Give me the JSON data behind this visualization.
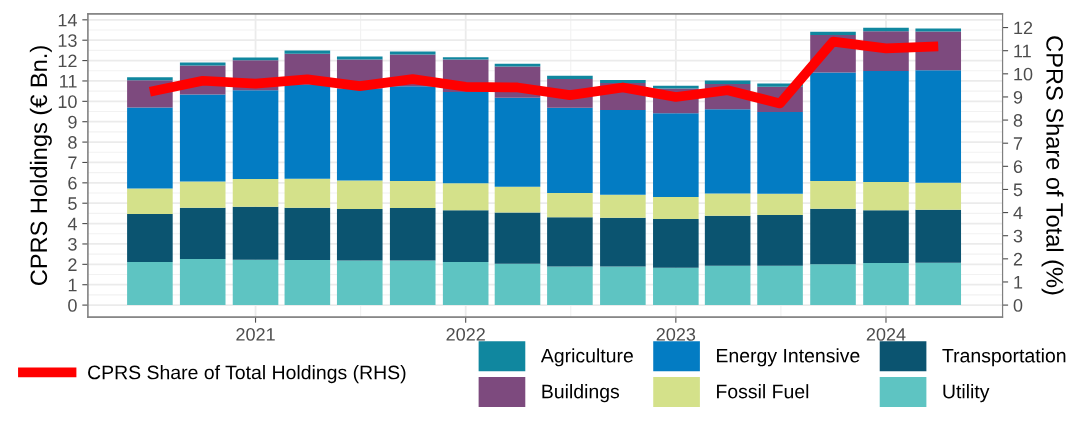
{
  "chart_data": {
    "type": "bar",
    "stacked": true,
    "ylabel": "CPRS Holdings (€ Bn.)",
    "y2label": "CPRS Share of Total (%)",
    "x": [
      "2020-07",
      "2020-10",
      "2021-01",
      "2021-04",
      "2021-07",
      "2021-10",
      "2022-01",
      "2022-04",
      "2022-07",
      "2022-10",
      "2023-01",
      "2023-04",
      "2023-07",
      "2023-10",
      "2024-01",
      "2024-04"
    ],
    "xlim": [
      "2020-03-15",
      "2024-07-22"
    ],
    "xticks": [
      {
        "value": "2021-01",
        "label": "2021"
      },
      {
        "value": "2022-01",
        "label": "2022"
      },
      {
        "value": "2023-01",
        "label": "2023"
      },
      {
        "value": "2024-01",
        "label": "2024"
      }
    ],
    "ylim": [
      -0.59,
      14.29
    ],
    "yticks": [
      0,
      1,
      2,
      3,
      4,
      5,
      6,
      7,
      8,
      9,
      10,
      11,
      12,
      13,
      14
    ],
    "y2lim": [
      -0.52,
      12.59
    ],
    "y2ticks": [
      0,
      1,
      2,
      3,
      4,
      5,
      6,
      7,
      8,
      9,
      10,
      11,
      12
    ],
    "grid": true,
    "legend": "bottom",
    "series": [
      {
        "name": "Utility",
        "color": "#5ec4c2",
        "values": [
          2.11,
          2.26,
          2.23,
          2.21,
          2.19,
          2.19,
          2.11,
          2.03,
          1.9,
          1.9,
          1.83,
          1.93,
          1.93,
          2.0,
          2.06,
          2.08
        ]
      },
      {
        "name": "Transportation",
        "color": "#0b5470",
        "values": [
          2.36,
          2.52,
          2.6,
          2.57,
          2.53,
          2.57,
          2.54,
          2.52,
          2.41,
          2.39,
          2.39,
          2.46,
          2.49,
          2.73,
          2.59,
          2.6
        ]
      },
      {
        "name": "Fossil Fuel",
        "color": "#d4e18a",
        "values": [
          1.25,
          1.29,
          1.36,
          1.42,
          1.39,
          1.33,
          1.33,
          1.26,
          1.19,
          1.13,
          1.08,
          1.09,
          1.05,
          1.36,
          1.39,
          1.33
        ]
      },
      {
        "name": "Energy Intensive",
        "color": "#037cc3",
        "values": [
          3.98,
          4.26,
          4.35,
          4.64,
          4.52,
          4.65,
          4.48,
          4.37,
          4.19,
          4.16,
          4.11,
          4.13,
          4.01,
          5.32,
          5.45,
          5.52
        ]
      },
      {
        "name": "Buildings",
        "color": "#7d4a7e",
        "values": [
          1.34,
          1.43,
          1.48,
          1.5,
          1.42,
          1.56,
          1.59,
          1.53,
          1.41,
          1.32,
          1.22,
          1.24,
          1.24,
          1.84,
          1.95,
          1.9
        ]
      },
      {
        "name": "Agriculture",
        "color": "#10879f",
        "values": [
          0.14,
          0.14,
          0.13,
          0.15,
          0.15,
          0.14,
          0.11,
          0.13,
          0.15,
          0.15,
          0.14,
          0.17,
          0.15,
          0.16,
          0.17,
          0.14
        ]
      },
      {
        "name": "CPRS Share of Total Holdings (RHS)",
        "type": "line",
        "axis": "y2",
        "color": "#ff0000",
        "line_style": "solid",
        "values": [
          9.22,
          9.7,
          9.58,
          9.76,
          9.47,
          9.77,
          9.44,
          9.41,
          9.08,
          9.41,
          9.0,
          9.29,
          8.72,
          11.39,
          11.1,
          11.19
        ]
      }
    ]
  }
}
